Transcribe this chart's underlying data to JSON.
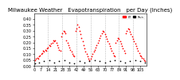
{
  "title": "Milwaukee Weather   Evapotranspiration   per Day (Inches)",
  "bg_color": "#ffffff",
  "plot_bg": "#ffffff",
  "grid_color": "#bbbbbb",
  "axis_color": "#000000",
  "red_color": "#ff0000",
  "black_color": "#000000",
  "ylim": [
    0.0,
    0.45
  ],
  "yticks": [
    0.0,
    0.05,
    0.1,
    0.15,
    0.2,
    0.25,
    0.3,
    0.35,
    0.4
  ],
  "legend_red": "ET",
  "legend_black": "Rain",
  "n_points": 110,
  "red_x": [
    1,
    2,
    3,
    4,
    5,
    6,
    7,
    8,
    9,
    10,
    11,
    12,
    13,
    14,
    15,
    16,
    17,
    18,
    19,
    20,
    21,
    22,
    23,
    24,
    25,
    26,
    27,
    28,
    29,
    30,
    31,
    32,
    33,
    34,
    35,
    36,
    37,
    38,
    39,
    40,
    41,
    42,
    43,
    44,
    45,
    46,
    47,
    48,
    49,
    50,
    51,
    52,
    53,
    54,
    55,
    56,
    57,
    58,
    59,
    60,
    61,
    62,
    63,
    64,
    65,
    66,
    67,
    68,
    69,
    70,
    71,
    72,
    73,
    74,
    75,
    76,
    77,
    78,
    79,
    80,
    81,
    82,
    83,
    84,
    85,
    86,
    87,
    88,
    89,
    90,
    91,
    92,
    93,
    94,
    95,
    96,
    97,
    98,
    99,
    100,
    101,
    102,
    103,
    104,
    105,
    106,
    107,
    108,
    109,
    110
  ],
  "red_y": [
    0.05,
    0.06,
    0.07,
    0.06,
    0.08,
    0.09,
    0.1,
    0.11,
    0.13,
    0.12,
    0.14,
    0.13,
    0.15,
    0.16,
    0.18,
    0.17,
    0.19,
    0.2,
    0.22,
    0.21,
    0.22,
    0.2,
    0.18,
    0.16,
    0.14,
    0.13,
    0.25,
    0.28,
    0.3,
    0.29,
    0.28,
    0.22,
    0.2,
    0.18,
    0.16,
    0.14,
    0.12,
    0.1,
    0.09,
    0.08,
    0.3,
    0.32,
    0.35,
    0.33,
    0.3,
    0.27,
    0.24,
    0.21,
    0.18,
    0.15,
    0.12,
    0.1,
    0.08,
    0.06,
    0.05,
    0.06,
    0.08,
    0.1,
    0.12,
    0.14,
    0.16,
    0.18,
    0.2,
    0.22,
    0.24,
    0.26,
    0.28,
    0.3,
    0.29,
    0.27,
    0.25,
    0.23,
    0.21,
    0.19,
    0.17,
    0.15,
    0.13,
    0.11,
    0.09,
    0.08,
    0.2,
    0.22,
    0.24,
    0.23,
    0.21,
    0.19,
    0.17,
    0.15,
    0.13,
    0.11,
    0.28,
    0.3,
    0.32,
    0.31,
    0.29,
    0.27,
    0.25,
    0.23,
    0.21,
    0.19,
    0.17,
    0.15,
    0.13,
    0.11,
    0.09,
    0.08,
    0.07,
    0.06,
    0.05,
    0.04
  ],
  "black_x": [
    1,
    5,
    10,
    15,
    20,
    25,
    30,
    35,
    40,
    45,
    50,
    55,
    60,
    65,
    70,
    75,
    80,
    85,
    90,
    95,
    100,
    105,
    110
  ],
  "black_y": [
    0.02,
    0.03,
    0.04,
    0.05,
    0.03,
    0.04,
    0.05,
    0.03,
    0.02,
    0.04,
    0.03,
    0.04,
    0.05,
    0.04,
    0.03,
    0.04,
    0.05,
    0.04,
    0.03,
    0.04,
    0.05,
    0.04,
    0.03
  ],
  "vlines_x": [
    14,
    28,
    42,
    56,
    70,
    84,
    98
  ],
  "title_fontsize": 5,
  "tick_fontsize": 3.5
}
